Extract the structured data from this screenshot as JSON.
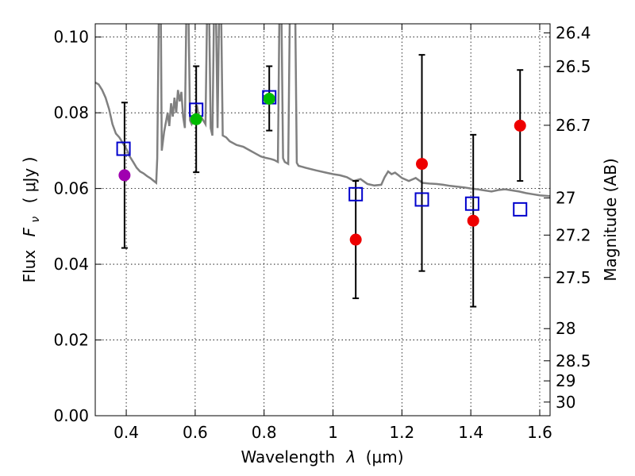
{
  "chart_data": {
    "type": "scatter",
    "title": "",
    "xlabel_text": "Wavelength",
    "xlabel_symbol": "λ",
    "xlabel_unit": "(μm)",
    "ylabel_text": "Flux",
    "ylabel_symbol": "F",
    "ylabel_subscript": "ν",
    "ylabel_unit": "( μJy )",
    "y2label": "Magnitude (AB)",
    "xlim": [
      0.31,
      1.63
    ],
    "ylim": [
      0.0,
      0.1035
    ],
    "grid": true,
    "x_ticks": [
      {
        "value": 0.4,
        "label": "0.4"
      },
      {
        "value": 0.6,
        "label": "0.6"
      },
      {
        "value": 0.8,
        "label": "0.8"
      },
      {
        "value": 1.0,
        "label": "1"
      },
      {
        "value": 1.2,
        "label": "1.2"
      },
      {
        "value": 1.4,
        "label": "1.4"
      },
      {
        "value": 1.6,
        "label": "1.6"
      }
    ],
    "y_ticks": [
      {
        "value": 0.0,
        "label": "0.00"
      },
      {
        "value": 0.02,
        "label": "0.02"
      },
      {
        "value": 0.04,
        "label": "0.04"
      },
      {
        "value": 0.06,
        "label": "0.06"
      },
      {
        "value": 0.08,
        "label": "0.08"
      },
      {
        "value": 0.1,
        "label": "0.10"
      }
    ],
    "y2_ticks": [
      {
        "flux": 0.1011,
        "label": "26.4"
      },
      {
        "flux": 0.0922,
        "label": "26.5"
      },
      {
        "flux": 0.0767,
        "label": "26.7"
      },
      {
        "flux": 0.0575,
        "label": "27"
      },
      {
        "flux": 0.0477,
        "label": "27.2"
      },
      {
        "flux": 0.0365,
        "label": "27.5"
      },
      {
        "flux": 0.023,
        "label": "28"
      },
      {
        "flux": 0.0145,
        "label": "28.5"
      },
      {
        "flux": 0.0092,
        "label": "29"
      },
      {
        "flux": 0.0036,
        "label": "30"
      }
    ],
    "colors": {
      "model": "#808080",
      "open_square": "#0000cc",
      "errorbar": "#000000",
      "purple": "#a000b0",
      "green": "#00bb00",
      "red": "#ee0000"
    },
    "observed": [
      {
        "x": 0.395,
        "y": 0.0635,
        "yerr_low": 0.0443,
        "yerr_high": 0.0827,
        "color": "purple"
      },
      {
        "x": 0.603,
        "y": 0.0783,
        "yerr_low": 0.0643,
        "yerr_high": 0.0923,
        "color": "green"
      },
      {
        "x": 0.815,
        "y": 0.0837,
        "yerr_low": 0.0753,
        "yerr_high": 0.0923,
        "color": "green"
      },
      {
        "x": 1.066,
        "y": 0.0465,
        "yerr_low": 0.031,
        "yerr_high": 0.062,
        "color": "red"
      },
      {
        "x": 1.258,
        "y": 0.0665,
        "yerr_low": 0.0382,
        "yerr_high": 0.0953,
        "color": "red"
      },
      {
        "x": 1.407,
        "y": 0.0515,
        "yerr_low": 0.0288,
        "yerr_high": 0.0742,
        "color": "red"
      },
      {
        "x": 1.543,
        "y": 0.0766,
        "yerr_low": 0.062,
        "yerr_high": 0.0913,
        "color": "red"
      }
    ],
    "model_photometry": [
      {
        "x": 0.392,
        "y": 0.0705
      },
      {
        "x": 0.603,
        "y": 0.0808
      },
      {
        "x": 0.815,
        "y": 0.0841
      },
      {
        "x": 1.066,
        "y": 0.0585
      },
      {
        "x": 1.258,
        "y": 0.0571
      },
      {
        "x": 1.404,
        "y": 0.056
      },
      {
        "x": 1.543,
        "y": 0.0545
      }
    ],
    "model_spectrum": [
      [
        0.31,
        0.088
      ],
      [
        0.32,
        0.0875
      ],
      [
        0.33,
        0.086
      ],
      [
        0.34,
        0.084
      ],
      [
        0.35,
        0.081
      ],
      [
        0.36,
        0.077
      ],
      [
        0.37,
        0.0745
      ],
      [
        0.38,
        0.0735
      ],
      [
        0.39,
        0.072
      ],
      [
        0.4,
        0.0705
      ],
      [
        0.41,
        0.0685
      ],
      [
        0.42,
        0.067
      ],
      [
        0.43,
        0.0655
      ],
      [
        0.44,
        0.0645
      ],
      [
        0.45,
        0.064
      ],
      [
        0.46,
        0.0633
      ],
      [
        0.47,
        0.0627
      ],
      [
        0.48,
        0.062
      ],
      [
        0.487,
        0.0615
      ],
      [
        0.49,
        0.068
      ],
      [
        0.495,
        0.11
      ],
      [
        0.5,
        0.11
      ],
      [
        0.503,
        0.07
      ],
      [
        0.51,
        0.075
      ],
      [
        0.52,
        0.08
      ],
      [
        0.525,
        0.0765
      ],
      [
        0.53,
        0.0825
      ],
      [
        0.535,
        0.079
      ],
      [
        0.54,
        0.084
      ],
      [
        0.545,
        0.08
      ],
      [
        0.55,
        0.086
      ],
      [
        0.555,
        0.083
      ],
      [
        0.56,
        0.0855
      ],
      [
        0.565,
        0.079
      ],
      [
        0.57,
        0.076
      ],
      [
        0.575,
        0.11
      ],
      [
        0.58,
        0.11
      ],
      [
        0.585,
        0.078
      ],
      [
        0.59,
        0.077
      ],
      [
        0.6,
        0.079
      ],
      [
        0.605,
        0.082
      ],
      [
        0.61,
        0.079
      ],
      [
        0.62,
        0.0785
      ],
      [
        0.63,
        0.077
      ],
      [
        0.635,
        0.11
      ],
      [
        0.64,
        0.11
      ],
      [
        0.645,
        0.076
      ],
      [
        0.65,
        0.074
      ],
      [
        0.655,
        0.11
      ],
      [
        0.66,
        0.11
      ],
      [
        0.665,
        0.076
      ],
      [
        0.67,
        0.11
      ],
      [
        0.675,
        0.11
      ],
      [
        0.68,
        0.074
      ],
      [
        0.69,
        0.0735
      ],
      [
        0.7,
        0.0725
      ],
      [
        0.72,
        0.0715
      ],
      [
        0.74,
        0.071
      ],
      [
        0.75,
        0.0705
      ],
      [
        0.76,
        0.07
      ],
      [
        0.77,
        0.0695
      ],
      [
        0.78,
        0.069
      ],
      [
        0.79,
        0.0685
      ],
      [
        0.8,
        0.0682
      ],
      [
        0.82,
        0.0678
      ],
      [
        0.83,
        0.0675
      ],
      [
        0.84,
        0.067
      ],
      [
        0.845,
        0.11
      ],
      [
        0.85,
        0.11
      ],
      [
        0.855,
        0.068
      ],
      [
        0.86,
        0.067
      ],
      [
        0.87,
        0.0665
      ],
      [
        0.875,
        0.11
      ],
      [
        0.88,
        0.11
      ],
      [
        0.885,
        0.11
      ],
      [
        0.89,
        0.11
      ],
      [
        0.895,
        0.0668
      ],
      [
        0.9,
        0.066
      ],
      [
        0.92,
        0.0655
      ],
      [
        0.95,
        0.0648
      ],
      [
        0.98,
        0.0642
      ],
      [
        1.0,
        0.0638
      ],
      [
        1.02,
        0.0635
      ],
      [
        1.04,
        0.063
      ],
      [
        1.06,
        0.062
      ],
      [
        1.08,
        0.0625
      ],
      [
        1.1,
        0.0612
      ],
      [
        1.12,
        0.0608
      ],
      [
        1.14,
        0.061
      ],
      [
        1.15,
        0.063
      ],
      [
        1.16,
        0.0645
      ],
      [
        1.17,
        0.0638
      ],
      [
        1.18,
        0.0642
      ],
      [
        1.19,
        0.0635
      ],
      [
        1.2,
        0.0628
      ],
      [
        1.22,
        0.062
      ],
      [
        1.24,
        0.0628
      ],
      [
        1.26,
        0.0615
      ],
      [
        1.28,
        0.0613
      ],
      [
        1.3,
        0.0612
      ],
      [
        1.32,
        0.061
      ],
      [
        1.34,
        0.0607
      ],
      [
        1.36,
        0.0605
      ],
      [
        1.38,
        0.0603
      ],
      [
        1.4,
        0.06
      ],
      [
        1.42,
        0.0598
      ],
      [
        1.44,
        0.0595
      ],
      [
        1.46,
        0.0592
      ],
      [
        1.48,
        0.0596
      ],
      [
        1.5,
        0.0598
      ],
      [
        1.52,
        0.0595
      ],
      [
        1.54,
        0.0592
      ],
      [
        1.56,
        0.0588
      ],
      [
        1.58,
        0.0585
      ],
      [
        1.6,
        0.0582
      ],
      [
        1.63,
        0.058
      ]
    ]
  }
}
